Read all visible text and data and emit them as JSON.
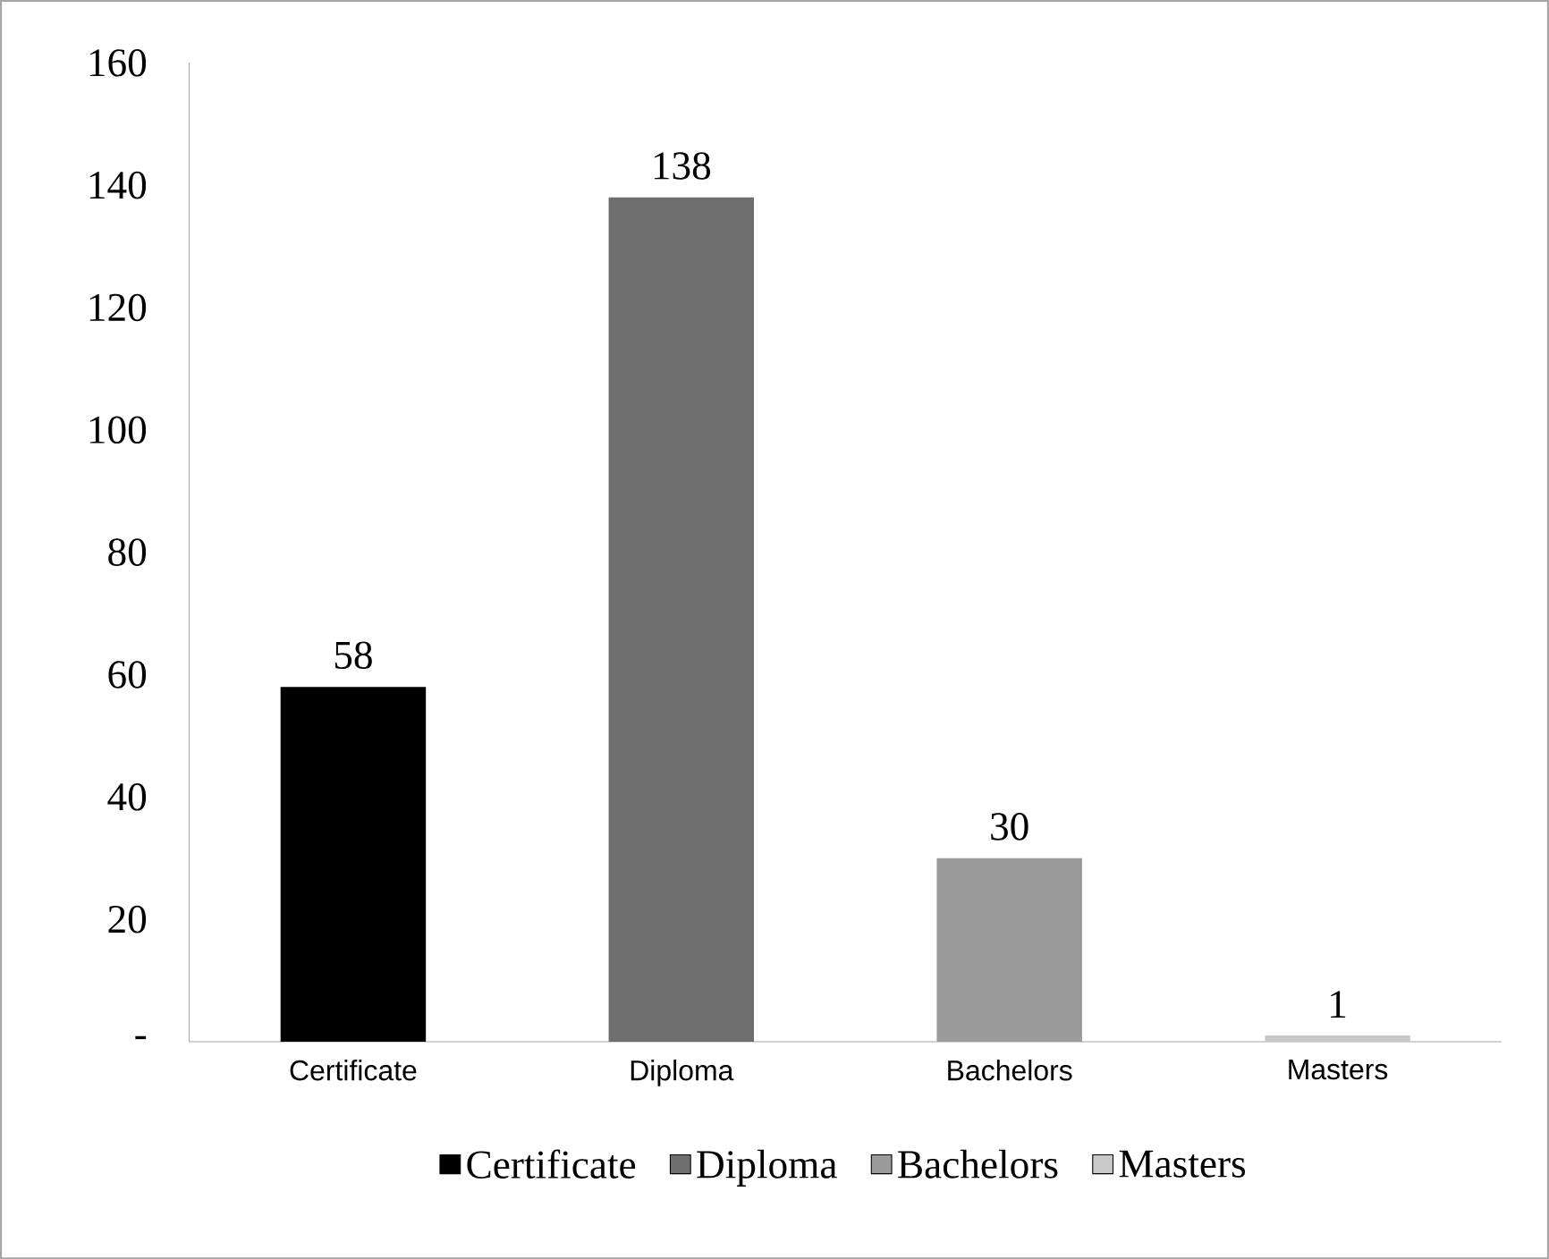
{
  "chart_data": {
    "type": "bar",
    "categories": [
      "Certificate",
      "Diploma",
      "Bachelors",
      "Masters"
    ],
    "series": [
      {
        "name": "Certificate",
        "color": "#000000",
        "values": [
          58,
          null,
          null,
          null
        ]
      },
      {
        "name": "Diploma",
        "color": "#6e6e6e",
        "values": [
          null,
          138,
          null,
          null
        ]
      },
      {
        "name": "Bachelors",
        "color": "#9a9a9a",
        "values": [
          null,
          null,
          30,
          null
        ]
      },
      {
        "name": "Masters",
        "color": "#c8c8c8",
        "values": [
          null,
          null,
          null,
          1
        ]
      }
    ],
    "ylim": [
      0,
      160
    ],
    "yticks": [
      {
        "value": 0,
        "label": "-"
      },
      20,
      40,
      60,
      80,
      100,
      120,
      140,
      160
    ],
    "data_labels": true,
    "legend": "bottom",
    "grid": false
  }
}
